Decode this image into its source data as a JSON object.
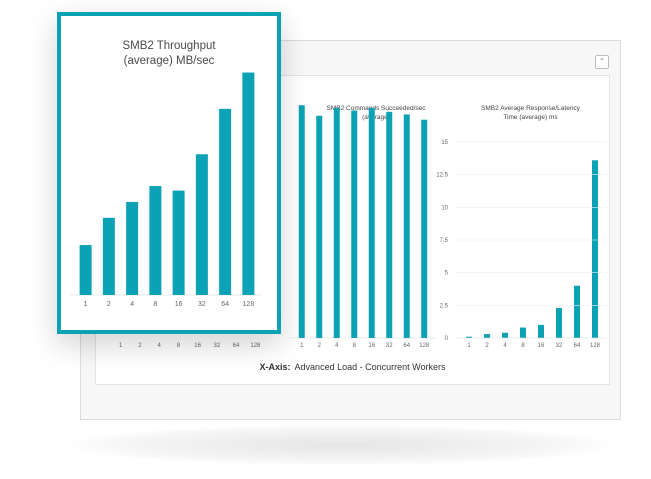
{
  "xaxis": {
    "prefix": "X-Axis:",
    "text": "Advanced Load - Concurrent Workers"
  },
  "collapse_icon": "chevron-up-icon",
  "bar_color": "#0aa2b4",
  "chart_data": [
    {
      "type": "bar",
      "title_line1": "SMB2 Throughput",
      "title_line2": "(average) MB/sec",
      "categories": [
        "1",
        "2",
        "4",
        "8",
        "16",
        "32",
        "64",
        "128"
      ],
      "values": [
        22,
        34,
        41,
        48,
        46,
        62,
        82,
        98
      ],
      "ylim": [
        0,
        100
      ]
    },
    {
      "type": "bar",
      "title_line1": "SMB2 Commands Succeeded/sec",
      "title_line2": "(average)",
      "categories": [
        "1",
        "2",
        "4",
        "8",
        "16",
        "32",
        "64",
        "128"
      ],
      "values": [
        17.7,
        16.9,
        17.5,
        17.3,
        17.5,
        17.2,
        17.0,
        16.6
      ],
      "ylim": [
        0,
        20
      ]
    },
    {
      "type": "bar",
      "title_line1": "SMB2 Average Response/Latency",
      "title_line2": "Time (average) ms",
      "categories": [
        "1",
        "2",
        "4",
        "8",
        "16",
        "32",
        "64",
        "128"
      ],
      "values": [
        0.1,
        0.3,
        0.4,
        0.8,
        1.0,
        2.3,
        4.0,
        13.6
      ],
      "yticks": [
        "0",
        "2.5",
        "5",
        "7.5",
        "10",
        "12.5",
        "15"
      ],
      "ylim": [
        0,
        15
      ]
    }
  ]
}
